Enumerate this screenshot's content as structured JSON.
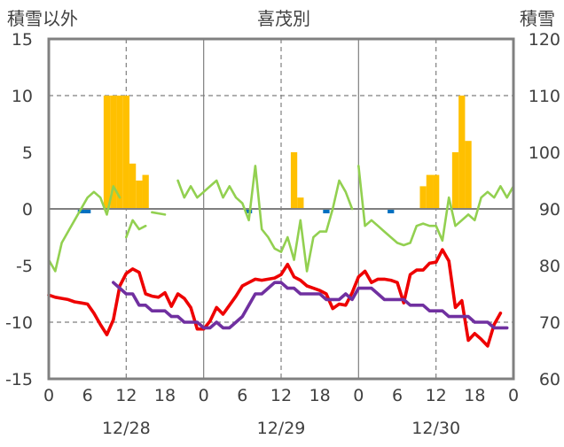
{
  "chart_data": {
    "type": "line",
    "title": "喜茂別",
    "left_axis": {
      "label": "積雪以外",
      "range": [
        -15,
        15
      ],
      "ticks": [
        "15",
        "10",
        "5",
        "0",
        "-5",
        "-10",
        "-15"
      ]
    },
    "right_axis": {
      "label": "積雪",
      "range": [
        60,
        120
      ],
      "ticks": [
        "120",
        "110",
        "100",
        "90",
        "80",
        "70",
        "60"
      ]
    },
    "x_axis": {
      "range_hours": [
        0,
        72
      ],
      "hour_ticks": [
        "0",
        "6",
        "12",
        "18",
        "0",
        "6",
        "12",
        "18",
        "0",
        "6",
        "12",
        "18",
        "0"
      ],
      "dates": [
        "12/28",
        "12/29",
        "12/30"
      ]
    },
    "grid": "dashed vertical at 12 h, dashed horizontal at -10, 0, 10",
    "colors": {
      "temperature": "#ee0000",
      "snow_depth": "#7030a0",
      "wind": "#92d050",
      "snowfall": "#ffc000",
      "precipitation": "#0070c0"
    },
    "series": [
      {
        "axis": "left",
        "type": "bar",
        "color": "#ffc000",
        "points": [
          [
            9,
            10
          ],
          [
            10,
            10
          ],
          [
            11,
            10
          ],
          [
            12,
            10
          ],
          [
            13,
            4
          ],
          [
            14,
            2.5
          ],
          [
            15,
            3
          ]
        ]
      },
      {
        "axis": "left",
        "type": "bar",
        "color": "#ffc000",
        "points": [
          [
            38,
            5
          ],
          [
            39,
            1
          ]
        ]
      },
      {
        "axis": "left",
        "type": "bar",
        "color": "#ffc000",
        "points": [
          [
            58,
            2
          ],
          [
            59,
            3
          ],
          [
            60,
            3
          ],
          [
            63,
            5
          ],
          [
            64,
            10
          ],
          [
            65,
            6
          ]
        ]
      },
      {
        "axis": "left",
        "type": "bar",
        "color": "#0070c0",
        "points": [
          [
            5,
            -0.3
          ],
          [
            6,
            -0.3
          ],
          [
            31,
            -0.3
          ],
          [
            43,
            -0.3
          ],
          [
            53,
            -0.3
          ]
        ]
      },
      {
        "axis": "left",
        "type": "line",
        "color": "#ee0000",
        "points": [
          [
            0,
            -7.6
          ],
          [
            1,
            -7.8
          ],
          [
            2,
            -7.9
          ],
          [
            3,
            -8
          ],
          [
            4,
            -8.2
          ],
          [
            5,
            -8.3
          ],
          [
            6,
            -8.4
          ],
          [
            7,
            -9.2
          ],
          [
            8,
            -10.2
          ],
          [
            9,
            -11.1
          ],
          [
            10,
            -9.8
          ],
          [
            11,
            -6.8
          ],
          [
            12,
            -5.7
          ],
          [
            13,
            -5.3
          ],
          [
            14,
            -5.6
          ],
          [
            15,
            -7.5
          ],
          [
            16,
            -7.7
          ],
          [
            17,
            -7.8
          ],
          [
            18,
            -7.4
          ],
          [
            19,
            -8.6
          ],
          [
            20,
            -7.5
          ],
          [
            21,
            -7.9
          ],
          [
            22,
            -8.7
          ],
          [
            23,
            -10.6
          ],
          [
            24,
            -10.6
          ],
          [
            25,
            -9.9
          ],
          [
            26,
            -8.7
          ],
          [
            27,
            -9.3
          ],
          [
            28,
            -8.5
          ],
          [
            29,
            -7.7
          ],
          [
            30,
            -6.8
          ],
          [
            31,
            -6.5
          ],
          [
            32,
            -6.2
          ],
          [
            33,
            -6.3
          ],
          [
            34,
            -6.2
          ],
          [
            35,
            -6.1
          ],
          [
            36,
            -5.8
          ],
          [
            37,
            -4.9
          ],
          [
            38,
            -6
          ],
          [
            39,
            -6.3
          ],
          [
            40,
            -6.8
          ],
          [
            41,
            -7
          ],
          [
            42,
            -7.2
          ],
          [
            43,
            -7.5
          ],
          [
            44,
            -8.8
          ],
          [
            45,
            -8.4
          ],
          [
            46,
            -8.5
          ],
          [
            47,
            -7.4
          ],
          [
            48,
            -6
          ],
          [
            49,
            -5.5
          ],
          [
            50,
            -6.5
          ],
          [
            51,
            -6.2
          ],
          [
            52,
            -6.2
          ],
          [
            53,
            -6.3
          ],
          [
            54,
            -6.5
          ],
          [
            55,
            -8.3
          ],
          [
            56,
            -5.8
          ],
          [
            57,
            -5.4
          ],
          [
            58,
            -5.4
          ],
          [
            59,
            -4.8
          ],
          [
            60,
            -4.7
          ],
          [
            61,
            -3.6
          ],
          [
            62,
            -4.6
          ],
          [
            63,
            -8.7
          ],
          [
            64,
            -8.1
          ],
          [
            65,
            -11.6
          ],
          [
            66,
            -11
          ],
          [
            67,
            -11.5
          ],
          [
            68,
            -12.1
          ],
          [
            69,
            -10.2
          ],
          [
            70,
            -9.2
          ]
        ]
      },
      {
        "axis": "right",
        "type": "line",
        "color": "#7030a0",
        "points": [
          [
            10,
            77
          ],
          [
            11,
            76
          ],
          [
            12,
            75
          ],
          [
            13,
            75
          ],
          [
            14,
            73
          ],
          [
            15,
            73
          ],
          [
            16,
            72
          ],
          [
            17,
            72
          ],
          [
            18,
            72
          ],
          [
            19,
            71
          ],
          [
            20,
            71
          ],
          [
            21,
            70
          ],
          [
            22,
            70
          ],
          [
            23,
            70
          ],
          [
            24,
            69
          ],
          [
            25,
            69
          ],
          [
            26,
            70
          ],
          [
            27,
            69
          ],
          [
            28,
            69
          ],
          [
            29,
            70
          ],
          [
            30,
            71
          ],
          [
            31,
            73
          ],
          [
            32,
            75
          ],
          [
            33,
            75
          ],
          [
            34,
            76
          ],
          [
            35,
            77
          ],
          [
            36,
            77
          ],
          [
            37,
            76
          ],
          [
            38,
            76
          ],
          [
            39,
            75
          ],
          [
            40,
            75
          ],
          [
            41,
            75
          ],
          [
            42,
            75
          ],
          [
            43,
            74
          ],
          [
            44,
            74
          ],
          [
            45,
            74
          ],
          [
            46,
            75
          ],
          [
            47,
            74
          ],
          [
            48,
            76
          ],
          [
            49,
            76
          ],
          [
            50,
            76
          ],
          [
            51,
            75
          ],
          [
            52,
            74
          ],
          [
            53,
            74
          ],
          [
            54,
            74
          ],
          [
            55,
            74
          ],
          [
            56,
            73
          ],
          [
            57,
            73
          ],
          [
            58,
            73
          ],
          [
            59,
            72
          ],
          [
            60,
            72
          ],
          [
            61,
            72
          ],
          [
            62,
            71
          ],
          [
            63,
            71
          ],
          [
            64,
            71
          ],
          [
            65,
            71
          ],
          [
            66,
            70
          ],
          [
            67,
            70
          ],
          [
            68,
            70
          ],
          [
            69,
            69
          ],
          [
            70,
            69
          ],
          [
            71,
            69
          ]
        ]
      },
      {
        "axis": "left",
        "type": "line",
        "color": "#92d050",
        "points": [
          [
            0,
            -4.5
          ],
          [
            1,
            -5.5
          ],
          [
            2,
            -3
          ],
          [
            3,
            -2
          ],
          [
            4,
            -1
          ],
          [
            5,
            0
          ],
          [
            6,
            1
          ],
          [
            7,
            1.5
          ],
          [
            8,
            1
          ],
          [
            9,
            -0.5
          ],
          [
            10,
            2
          ],
          [
            11,
            1
          ]
        ]
      },
      {
        "axis": "left",
        "type": "line",
        "color": "#92d050",
        "points": [
          [
            12,
            -2.5
          ],
          [
            13,
            -1
          ],
          [
            14,
            -1.8
          ],
          [
            15,
            -1.5
          ]
        ]
      },
      {
        "axis": "left",
        "type": "line",
        "color": "#92d050",
        "points": [
          [
            16,
            -0.3
          ],
          [
            17,
            -0.4
          ],
          [
            18,
            -0.5
          ]
        ]
      },
      {
        "axis": "left",
        "type": "line",
        "color": "#92d050",
        "points": [
          [
            20,
            2.5
          ],
          [
            21,
            1
          ],
          [
            22,
            2
          ],
          [
            23,
            1
          ],
          [
            24,
            1.5
          ],
          [
            25,
            2
          ],
          [
            26,
            2.5
          ],
          [
            27,
            1
          ],
          [
            28,
            2
          ],
          [
            29,
            1
          ],
          [
            30,
            0.5
          ],
          [
            31,
            -1
          ],
          [
            32,
            3.8
          ],
          [
            33,
            -1.8
          ],
          [
            34,
            -2.5
          ],
          [
            35,
            -3.5
          ],
          [
            36,
            -3.8
          ],
          [
            37,
            -2.5
          ],
          [
            38,
            -4.5
          ],
          [
            39,
            -1
          ],
          [
            40,
            -5.5
          ],
          [
            41,
            -2.5
          ],
          [
            42,
            -2
          ],
          [
            43,
            -2
          ],
          [
            44,
            0
          ],
          [
            45,
            2.5
          ],
          [
            46,
            1.5
          ],
          [
            47,
            0
          ]
        ]
      },
      {
        "axis": "left",
        "type": "line",
        "color": "#92d050",
        "points": [
          [
            48,
            3.8
          ],
          [
            49,
            -1.5
          ],
          [
            50,
            -1
          ],
          [
            51,
            -1.5
          ],
          [
            52,
            -2
          ],
          [
            53,
            -2.5
          ],
          [
            54,
            -3
          ],
          [
            55,
            -3.2
          ],
          [
            56,
            -3
          ],
          [
            57,
            -1.5
          ],
          [
            58,
            -1.3
          ],
          [
            59,
            -1.5
          ],
          [
            60,
            -1.5
          ],
          [
            61,
            -2.8
          ],
          [
            62,
            1
          ],
          [
            63,
            -1.5
          ],
          [
            64,
            -1
          ],
          [
            65,
            -0.5
          ],
          [
            66,
            -1
          ],
          [
            67,
            1
          ],
          [
            68,
            1.5
          ],
          [
            69,
            1
          ],
          [
            70,
            2
          ],
          [
            71,
            1
          ],
          [
            72,
            2
          ]
        ]
      }
    ]
  }
}
